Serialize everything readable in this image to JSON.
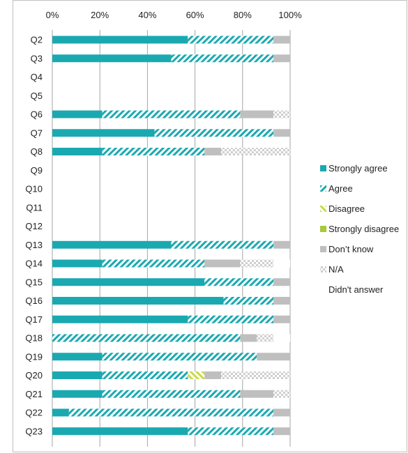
{
  "colors": {
    "strongly_agree": "#1aa9b0",
    "agree": "#1aa9b0",
    "disagree": "#c9d84a",
    "strongly_disagree": "#a8c93a",
    "dont_know": "#bfbfbf",
    "na": "#cfcfcf",
    "gridline": "#a6a6a6"
  },
  "chart_data": {
    "type": "bar",
    "orientation": "horizontal",
    "stacked": true,
    "title": "",
    "xlabel": "",
    "ylabel": "",
    "xlim": [
      0,
      100
    ],
    "x_ticks": [
      "0%",
      "20%",
      "40%",
      "60%",
      "80%",
      "100%"
    ],
    "grid": true,
    "legend_position": "right",
    "categories": [
      "Q2",
      "Q3",
      "Q4",
      "Q5",
      "Q6",
      "Q7",
      "Q8",
      "Q9",
      "Q10",
      "Q11",
      "Q12",
      "Q13",
      "Q14",
      "Q15",
      "Q16",
      "Q17",
      "Q18",
      "Q19",
      "Q20",
      "Q21",
      "Q22",
      "Q23"
    ],
    "series": [
      {
        "name": "Strongly agree",
        "pattern": "solid",
        "values": [
          57,
          50,
          0,
          0,
          21,
          43,
          21,
          0,
          0,
          0,
          0,
          50,
          21,
          64,
          72,
          57,
          0,
          21,
          21,
          21,
          7,
          57
        ]
      },
      {
        "name": "Agree",
        "pattern": "hatch",
        "values": [
          36,
          43,
          0,
          0,
          58,
          50,
          43,
          0,
          0,
          0,
          0,
          43,
          43,
          29,
          21,
          36,
          79,
          65,
          36,
          58,
          86,
          36
        ]
      },
      {
        "name": "Disagree",
        "pattern": "hatch-back",
        "values": [
          0,
          0,
          0,
          0,
          0,
          0,
          0,
          0,
          0,
          0,
          0,
          0,
          0,
          0,
          0,
          0,
          0,
          0,
          7,
          0,
          0,
          0
        ]
      },
      {
        "name": "Strongly disagree",
        "pattern": "solid",
        "values": [
          0,
          0,
          0,
          0,
          0,
          0,
          0,
          0,
          0,
          0,
          0,
          0,
          0,
          0,
          0,
          0,
          0,
          0,
          0,
          0,
          0,
          0
        ]
      },
      {
        "name": "Don’t know",
        "pattern": "solid",
        "values": [
          7,
          7,
          0,
          0,
          14,
          7,
          7,
          0,
          0,
          0,
          0,
          7,
          15,
          7,
          7,
          7,
          7,
          14,
          7,
          14,
          7,
          7
        ]
      },
      {
        "name": "N/A",
        "pattern": "checker",
        "values": [
          0,
          0,
          0,
          0,
          7,
          0,
          29,
          0,
          0,
          0,
          0,
          0,
          14,
          0,
          0,
          0,
          7,
          0,
          29,
          7,
          0,
          0
        ]
      },
      {
        "name": "Didn't answer",
        "pattern": "none",
        "values": [
          0,
          0,
          0,
          0,
          0,
          0,
          0,
          0,
          0,
          0,
          0,
          0,
          7,
          0,
          0,
          0,
          7,
          0,
          0,
          0,
          0,
          0
        ]
      }
    ]
  }
}
